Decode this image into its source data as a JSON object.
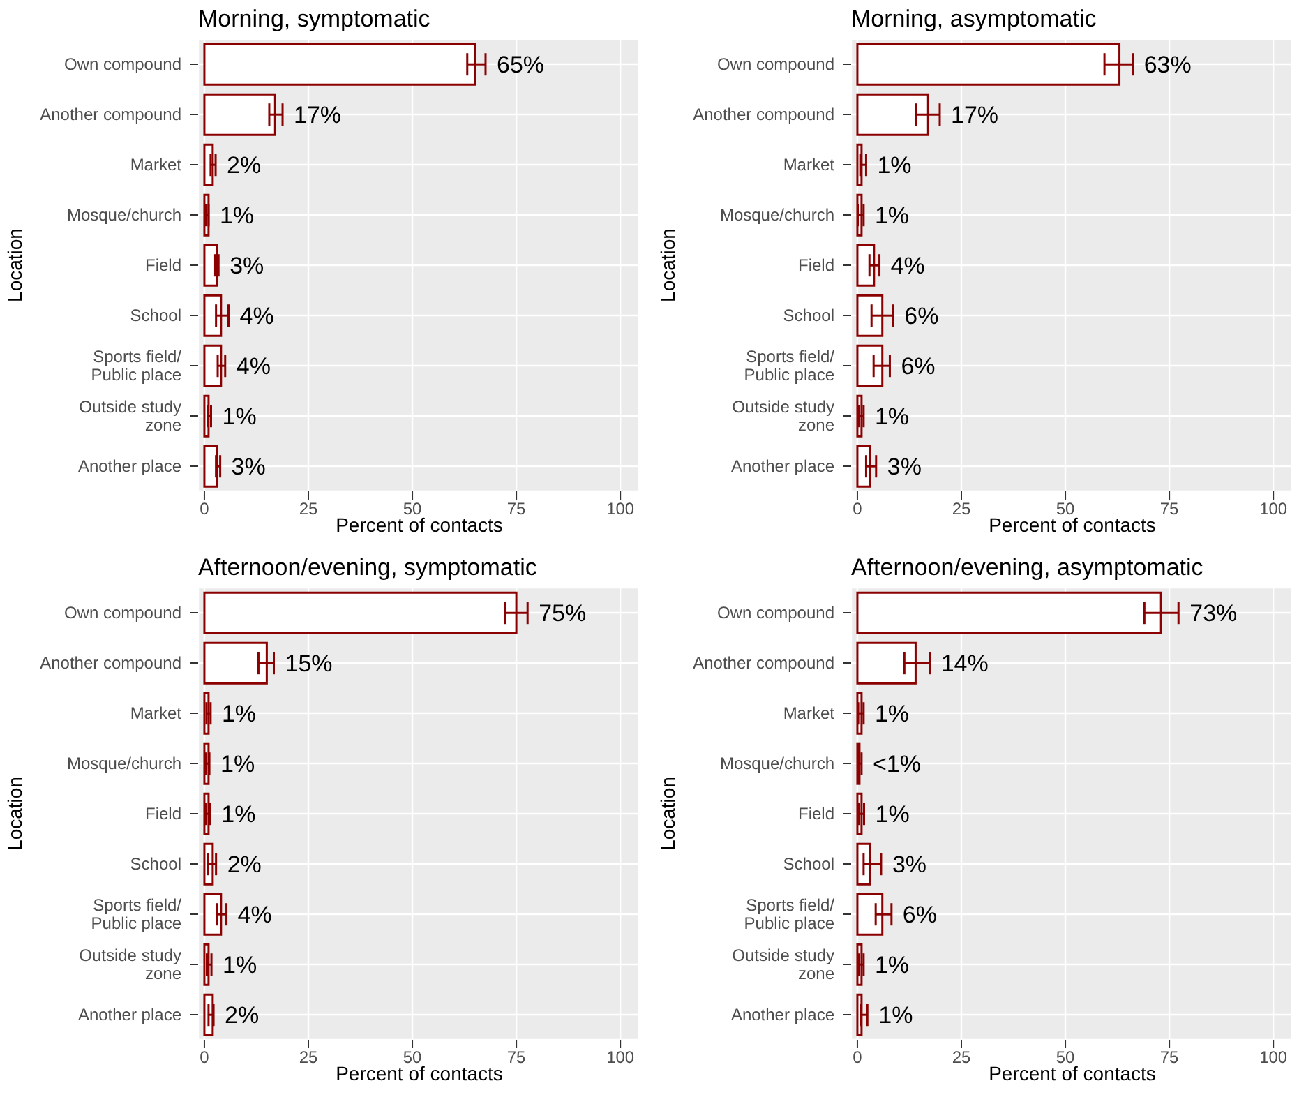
{
  "chart_data": [
    {
      "type": "bar",
      "orientation": "horizontal",
      "title": "Morning, symptomatic",
      "xlabel": "Percent of contacts",
      "ylabel": "Location",
      "categories": [
        "Own compound",
        "Another compound",
        "Market",
        "Mosque/church",
        "Field",
        "School",
        "Sports field/\nPublic place",
        "Outside study\nzone",
        "Another place"
      ],
      "color": "#8b0000",
      "values": [
        65,
        17,
        2,
        1,
        3,
        4,
        4,
        1,
        3
      ],
      "errors": [
        [
          63.2,
          67.6
        ],
        [
          15.6,
          18.8
        ],
        [
          1.5,
          2.7
        ],
        [
          0.3,
          1.0
        ],
        [
          2.6,
          3.4
        ],
        [
          2.8,
          5.8
        ],
        [
          3.2,
          5.0
        ],
        [
          0.9,
          1.6
        ],
        [
          2.8,
          3.8
        ]
      ],
      "value_labels": [
        "65%",
        "17%",
        "2%",
        "1%",
        "3%",
        "4%",
        "4%",
        "1%",
        "3%"
      ],
      "xlim": [
        -1.5,
        104.5
      ],
      "xticks": [
        0,
        25,
        50,
        75,
        100
      ],
      "grid": true
    },
    {
      "type": "bar",
      "orientation": "horizontal",
      "title": "Morning, asymptomatic",
      "xlabel": "Percent of contacts",
      "ylabel": "Location",
      "categories": [
        "Own compound",
        "Another compound",
        "Market",
        "Mosque/church",
        "Field",
        "School",
        "Sports field/\nPublic place",
        "Outside study\nzone",
        "Another place"
      ],
      "color": "#8b0000",
      "values": [
        63,
        17,
        1,
        1,
        4,
        6,
        6,
        1,
        3
      ],
      "errors": [
        [
          59.4,
          66.2
        ],
        [
          14.1,
          19.8
        ],
        [
          0.7,
          2.1
        ],
        [
          0.1,
          1.5
        ],
        [
          2.9,
          5.3
        ],
        [
          3.4,
          8.6
        ],
        [
          3.9,
          7.8
        ],
        [
          0.3,
          1.5
        ],
        [
          2.1,
          4.5
        ]
      ],
      "value_labels": [
        "63%",
        "17%",
        "1%",
        "1%",
        "4%",
        "6%",
        "6%",
        "1%",
        "3%"
      ],
      "xlim": [
        -1.5,
        104.5
      ],
      "xticks": [
        0,
        25,
        50,
        75,
        100
      ],
      "grid": true
    },
    {
      "type": "bar",
      "orientation": "horizontal",
      "title": "Afternoon/evening, symptomatic",
      "xlabel": "Percent of contacts",
      "ylabel": "Location",
      "categories": [
        "Own compound",
        "Another compound",
        "Market",
        "Mosque/church",
        "Field",
        "School",
        "Sports field/\nPublic place",
        "Outside study\nzone",
        "Another place"
      ],
      "color": "#8b0000",
      "values": [
        75,
        15,
        1,
        1,
        1,
        2,
        4,
        1,
        2
      ],
      "errors": [
        [
          72.3,
          77.7
        ],
        [
          13,
          16.7
        ],
        [
          0.5,
          1.5
        ],
        [
          0.3,
          1.2
        ],
        [
          0.4,
          1.4
        ],
        [
          0.9,
          2.8
        ],
        [
          3,
          5.3
        ],
        [
          0.6,
          1.7
        ],
        [
          1,
          2.2
        ]
      ],
      "value_labels": [
        "75%",
        "15%",
        "1%",
        "1%",
        "1%",
        "2%",
        "4%",
        "1%",
        "2%"
      ],
      "xlim": [
        -1.5,
        104.5
      ],
      "xticks": [
        0,
        25,
        50,
        75,
        100
      ],
      "grid": true
    },
    {
      "type": "bar",
      "orientation": "horizontal",
      "title": "Afternoon/evening, asymptomatic",
      "xlabel": "Percent of contacts",
      "ylabel": "Location",
      "categories": [
        "Own compound",
        "Another compound",
        "Market",
        "Mosque/church",
        "Field",
        "School",
        "Sports field/\nPublic place",
        "Outside study\nzone",
        "Another place"
      ],
      "color": "#8b0000",
      "values": [
        73,
        14,
        1,
        0.5,
        1,
        3,
        6,
        1,
        1
      ],
      "errors": [
        [
          69,
          77.2
        ],
        [
          11.3,
          17.4
        ],
        [
          0.2,
          1.5
        ],
        [
          0.2,
          1.0
        ],
        [
          0.4,
          1.6
        ],
        [
          1.5,
          5.7
        ],
        [
          4.4,
          8.2
        ],
        [
          0.3,
          1.5
        ],
        [
          0.9,
          2.4
        ]
      ],
      "value_labels": [
        "73%",
        "14%",
        "1%",
        "<1%",
        "1%",
        "3%",
        "6%",
        "1%",
        "1%"
      ],
      "xlim": [
        -1.5,
        104.5
      ],
      "xticks": [
        0,
        25,
        50,
        75,
        100
      ],
      "grid": true
    }
  ]
}
